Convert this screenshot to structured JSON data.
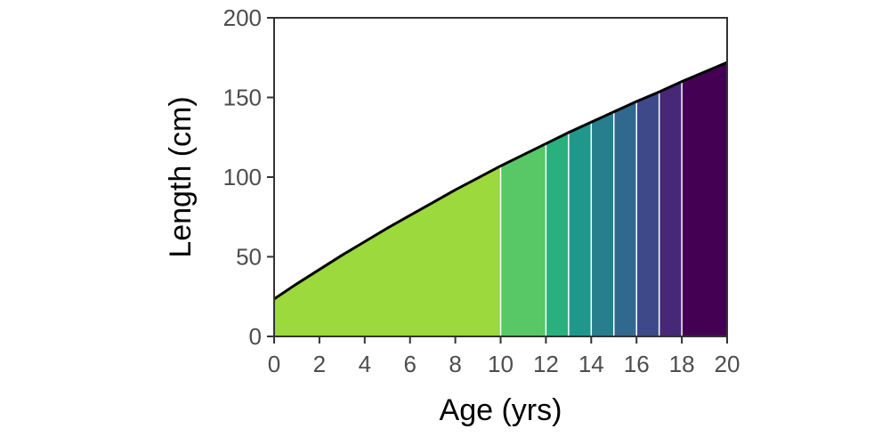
{
  "chart_data": {
    "type": "area",
    "xlabel": "Age (yrs)",
    "ylabel": "Length (cm)",
    "xlim": [
      0,
      20
    ],
    "ylim": [
      0,
      200
    ],
    "x_ticks": [
      0,
      2,
      4,
      6,
      8,
      10,
      12,
      14,
      16,
      18,
      20
    ],
    "y_ticks": [
      0,
      50,
      100,
      150,
      200
    ],
    "grid": false,
    "legend": "none",
    "curve": {
      "x": [
        0,
        1,
        2,
        3,
        4,
        5,
        6,
        7,
        8,
        9,
        10,
        11,
        12,
        13,
        14,
        15,
        16,
        17,
        18,
        19,
        20
      ],
      "y": [
        23.5,
        33,
        42,
        51,
        59.5,
        68,
        76,
        84,
        92,
        99.5,
        107,
        114,
        121,
        128,
        134.5,
        141,
        147.5,
        153.5,
        160,
        166,
        172
      ]
    },
    "segments": [
      {
        "from": 0,
        "to": 10,
        "color": "#9bd93c"
      },
      {
        "from": 10,
        "to": 12,
        "color": "#58c765"
      },
      {
        "from": 12,
        "to": 13,
        "color": "#2ab07f"
      },
      {
        "from": 13,
        "to": 14,
        "color": "#1f988b"
      },
      {
        "from": 14,
        "to": 15,
        "color": "#277f8e"
      },
      {
        "from": 15,
        "to": 16,
        "color": "#31688e"
      },
      {
        "from": 16,
        "to": 17,
        "color": "#3e4989"
      },
      {
        "from": 17,
        "to": 18,
        "color": "#472878"
      },
      {
        "from": 18,
        "to": 20,
        "color": "#440154"
      }
    ],
    "line_color": "#000000"
  }
}
